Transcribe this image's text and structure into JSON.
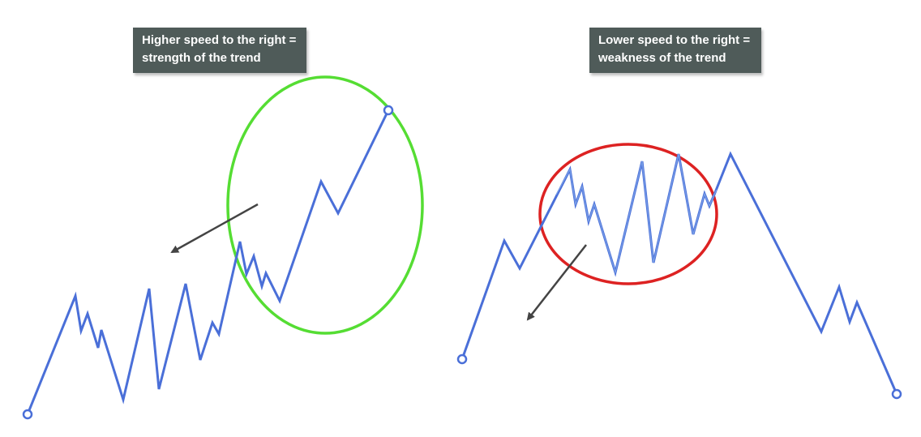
{
  "panels": [
    {
      "caption_line1": "Higher speed to the right =",
      "caption_line2": "strength of the trend",
      "ellipse_color": "#55dd33"
    },
    {
      "caption_line1": "Lower speed to the right =",
      "caption_line2": "weakness of the trend",
      "ellipse_color": "#dd2222"
    }
  ],
  "colors": {
    "line": "#4a6fd8",
    "arrow": "#444444",
    "caption_bg": "#4f5b59"
  }
}
